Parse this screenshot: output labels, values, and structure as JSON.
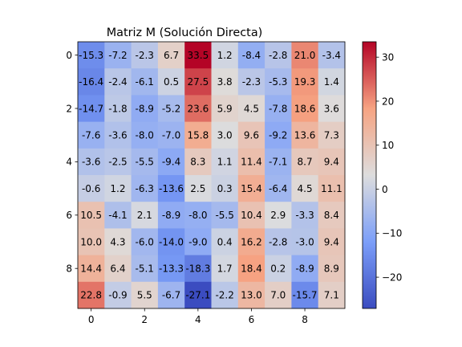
{
  "chart_data": {
    "type": "heatmap",
    "title": "Matriz M (Solución Directa)",
    "xlabel": "",
    "ylabel": "",
    "colormap": "coolwarm",
    "vmin": -27.1,
    "vmax": 33.5,
    "x_ticks": [
      0,
      2,
      4,
      6,
      8
    ],
    "y_ticks": [
      0,
      2,
      4,
      6,
      8
    ],
    "colorbar_ticks": [
      -20,
      -10,
      0,
      10,
      20,
      30
    ],
    "grid": false,
    "values": [
      [
        -15.3,
        -7.2,
        -2.3,
        6.7,
        33.5,
        1.2,
        -8.4,
        -2.8,
        21.0,
        -3.4
      ],
      [
        -16.4,
        -2.4,
        -6.1,
        0.5,
        27.5,
        3.8,
        -2.3,
        -5.3,
        19.3,
        1.4
      ],
      [
        -14.7,
        -1.8,
        -8.9,
        -5.2,
        23.6,
        5.9,
        4.5,
        -7.8,
        18.6,
        3.6
      ],
      [
        -7.6,
        -3.6,
        -8.0,
        -7.0,
        15.8,
        3.0,
        9.6,
        -9.2,
        13.6,
        7.3
      ],
      [
        -3.6,
        -2.5,
        -5.5,
        -9.4,
        8.3,
        1.1,
        11.4,
        -7.1,
        8.7,
        9.4
      ],
      [
        -0.6,
        1.2,
        -6.3,
        -13.6,
        2.5,
        0.3,
        15.4,
        -6.4,
        4.5,
        11.1
      ],
      [
        10.5,
        -4.1,
        2.1,
        -8.9,
        -8.0,
        -5.5,
        10.4,
        2.9,
        -3.3,
        8.4
      ],
      [
        10.0,
        4.3,
        -6.0,
        -14.0,
        -9.0,
        0.4,
        16.2,
        -2.8,
        -3.0,
        9.4
      ],
      [
        14.4,
        6.4,
        -5.1,
        -13.3,
        -18.3,
        1.7,
        18.4,
        0.2,
        -8.9,
        8.9
      ],
      [
        22.8,
        -0.9,
        5.5,
        -6.7,
        -27.1,
        -2.2,
        13.0,
        7.0,
        -15.7,
        7.1
      ]
    ]
  }
}
